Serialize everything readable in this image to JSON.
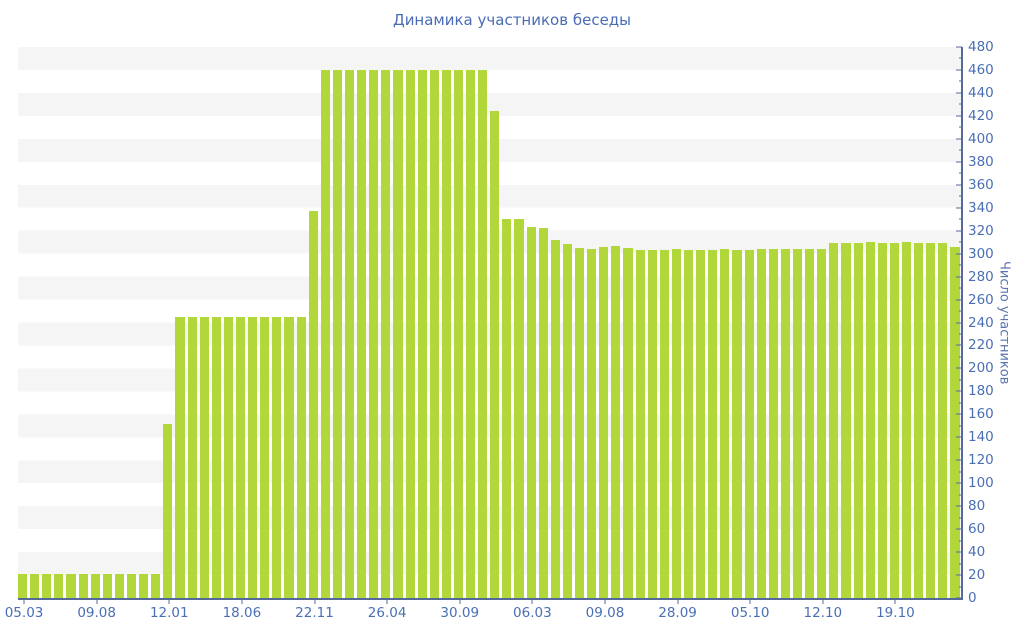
{
  "chart_data": {
    "type": "bar",
    "title": "Динамика участников беседы",
    "xlabel": "",
    "ylabel": "Число участников",
    "ylim": [
      0,
      480
    ],
    "y_tick_step": 20,
    "y_minor_step": 10,
    "grid": "striped-horizontal-bands",
    "legend_position": "none",
    "x_tick_every_n_bars": 6,
    "x_tick_labels": [
      "05.03",
      "09.08",
      "12.01",
      "18.06",
      "22.11",
      "26.04",
      "30.09",
      "06.03",
      "09.08",
      "28.09",
      "05.10",
      "12.10",
      "19.10"
    ],
    "values": [
      21,
      21,
      21,
      21,
      21,
      21,
      21,
      21,
      21,
      21,
      21,
      21,
      152,
      245,
      245,
      245,
      245,
      245,
      245,
      245,
      245,
      245,
      245,
      245,
      337,
      460,
      460,
      460,
      460,
      460,
      460,
      460,
      460,
      460,
      460,
      460,
      460,
      460,
      460,
      424,
      330,
      330,
      323,
      322,
      312,
      308,
      305,
      304,
      306,
      307,
      305,
      303,
      303,
      303,
      304,
      303,
      303,
      303,
      304,
      303,
      303,
      304,
      304,
      304,
      304,
      304,
      304,
      309,
      309,
      309,
      310,
      309,
      309,
      310,
      309,
      309,
      309,
      306
    ],
    "colors": {
      "bar": "#b2d73b",
      "axis": "#56699b",
      "tick_label": "#4a6fb5",
      "title": "#4a6cb5",
      "stripe": "#f5f5f5",
      "background": "#ffffff"
    }
  }
}
